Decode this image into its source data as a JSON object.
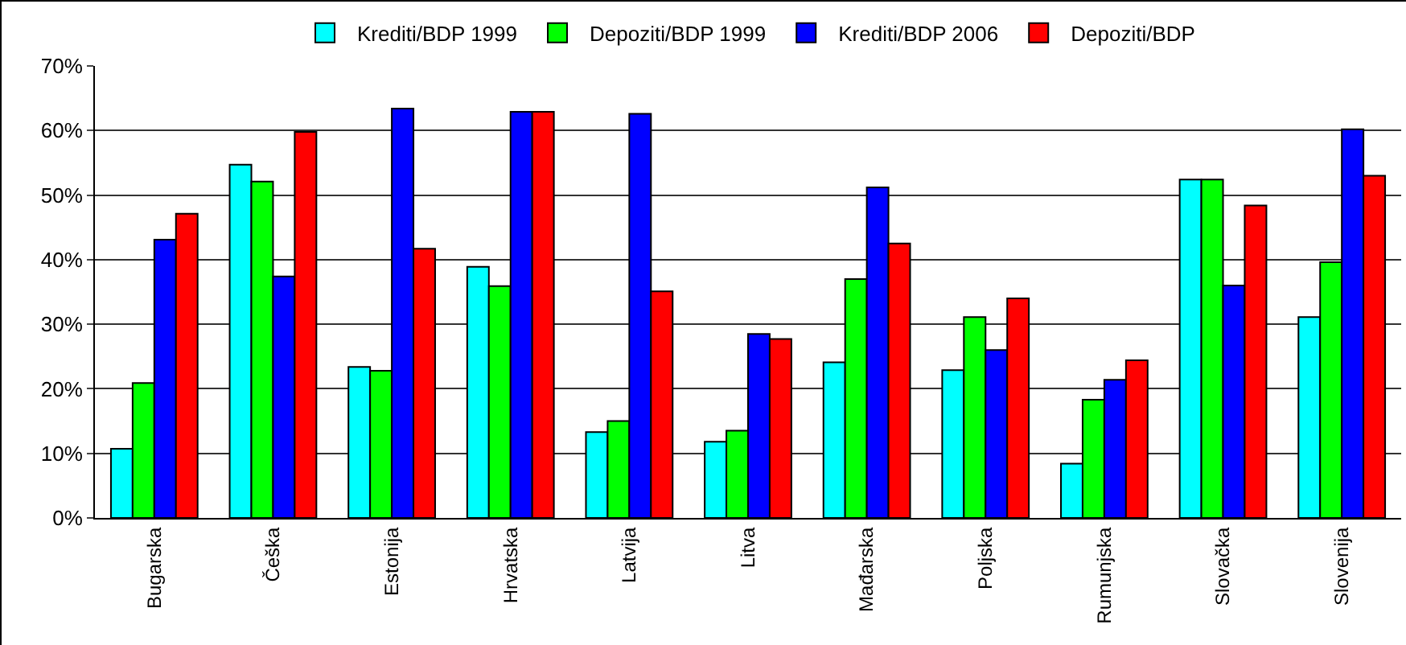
{
  "chart_data": {
    "type": "bar",
    "categories": [
      "Bugarska",
      "Češka",
      "Estonija",
      "Hrvatska",
      "Latvija",
      "Litva",
      "Mađarska",
      "Poljska",
      "Rumunjska",
      "Slovačka",
      "Slovenija"
    ],
    "series": [
      {
        "name": "Krediti/BDP 1999",
        "color": "#00ffff",
        "values": [
          10.7,
          54.7,
          23.4,
          38.9,
          13.3,
          11.8,
          24.1,
          22.9,
          8.4,
          52.4,
          31.1
        ]
      },
      {
        "name": "Depoziti/BDP 1999",
        "color": "#00ff00",
        "values": [
          20.9,
          52.1,
          22.8,
          35.9,
          15,
          13.5,
          37,
          31.1,
          18.3,
          52.4,
          39.6
        ]
      },
      {
        "name": "Krediti/BDP 2006",
        "color": "#0000ff",
        "values": [
          43.1,
          37.4,
          63.4,
          62.9,
          62.6,
          28.5,
          51.2,
          26,
          21.4,
          36,
          60.2
        ]
      },
      {
        "name": "Depoziti/BDP",
        "color": "#ff0000",
        "values": [
          47.1,
          59.8,
          41.7,
          62.9,
          35.1,
          27.7,
          42.5,
          34,
          24.4,
          48.4,
          53
        ]
      }
    ],
    "ylim": [
      0,
      70
    ],
    "yticks": [
      {
        "value": 0,
        "label": "0%"
      },
      {
        "value": 10,
        "label": "10%"
      },
      {
        "value": 20,
        "label": "20%"
      },
      {
        "value": 30,
        "label": "30%"
      },
      {
        "value": 40,
        "label": "40%"
      },
      {
        "value": 50,
        "label": "50%"
      },
      {
        "value": 60,
        "label": "60%"
      },
      {
        "value": 70,
        "label": "70%"
      }
    ],
    "grid": "y",
    "legend": "top"
  }
}
